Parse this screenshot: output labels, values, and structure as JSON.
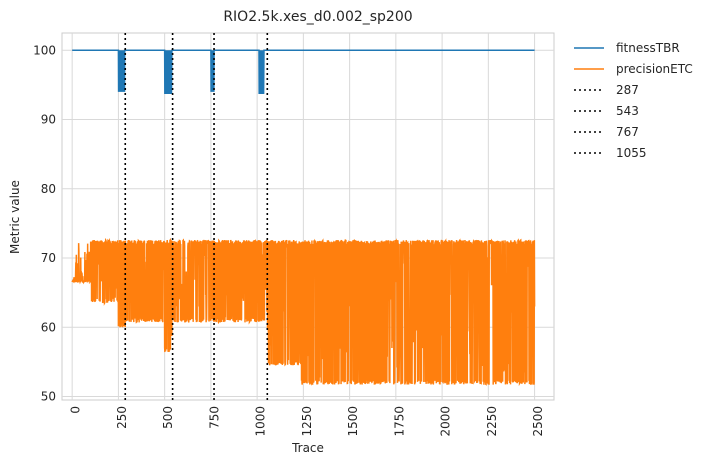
{
  "chart_data": {
    "type": "line",
    "title": "RIO2.5k.xes_d0.002_sp200",
    "xlabel": "Trace",
    "ylabel": "Metric value",
    "xlim": [
      -55,
      2605
    ],
    "ylim": [
      49.5,
      102.5
    ],
    "xticks": [
      0,
      250,
      500,
      750,
      1000,
      1250,
      1500,
      1750,
      2000,
      2250,
      2500
    ],
    "yticks": [
      50,
      60,
      70,
      80,
      90,
      100
    ],
    "grid": true,
    "legend_position": "outside-right",
    "colors": {
      "fitness": "#1f77b4",
      "precision": "#ff7f0e",
      "drift": "#000000"
    },
    "series": [
      {
        "name": "fitnessTBR",
        "baseline": 100,
        "segments": [
          [
            0,
            100
          ],
          [
            250,
            100
          ],
          [
            251,
            94
          ],
          [
            253,
            100
          ],
          [
            255,
            94
          ],
          [
            257,
            100
          ],
          [
            259,
            94
          ],
          [
            261,
            100
          ],
          [
            263,
            94
          ],
          [
            265,
            100
          ],
          [
            267,
            94
          ],
          [
            269,
            100
          ],
          [
            271,
            94
          ],
          [
            273,
            100
          ],
          [
            275,
            94
          ],
          [
            277,
            100
          ],
          [
            279,
            94
          ],
          [
            281,
            100
          ],
          [
            283,
            94
          ],
          [
            284,
            100
          ],
          [
            500,
            100
          ],
          [
            501,
            93.7
          ],
          [
            503,
            100
          ],
          [
            505,
            93.7
          ],
          [
            507,
            100
          ],
          [
            509,
            93.7
          ],
          [
            511,
            100
          ],
          [
            513,
            93.7
          ],
          [
            515,
            100
          ],
          [
            517,
            93.7
          ],
          [
            519,
            100
          ],
          [
            521,
            93.7
          ],
          [
            523,
            100
          ],
          [
            525,
            93.7
          ],
          [
            527,
            100
          ],
          [
            529,
            93.7
          ],
          [
            531,
            100
          ],
          [
            533,
            93.7
          ],
          [
            535,
            100
          ],
          [
            537,
            93.7
          ],
          [
            539,
            100
          ],
          [
            750,
            100
          ],
          [
            751,
            94
          ],
          [
            753,
            100
          ],
          [
            755,
            94
          ],
          [
            757,
            100
          ],
          [
            759,
            94
          ],
          [
            761,
            100
          ],
          [
            763,
            94
          ],
          [
            765,
            100
          ],
          [
            766,
            94
          ],
          [
            767,
            100
          ],
          [
            1010,
            100
          ],
          [
            1011,
            93.7
          ],
          [
            1013,
            100
          ],
          [
            1015,
            93.7
          ],
          [
            1017,
            100
          ],
          [
            1019,
            93.7
          ],
          [
            1021,
            100
          ],
          [
            1023,
            93.7
          ],
          [
            1025,
            100
          ],
          [
            1027,
            93.7
          ],
          [
            1029,
            100
          ],
          [
            1031,
            93.7
          ],
          [
            1033,
            100
          ],
          [
            1035,
            93.7
          ],
          [
            1037,
            100
          ],
          [
            2500,
            100
          ]
        ]
      },
      {
        "name": "precisionETC",
        "regimes": [
          {
            "x": [
              0,
              100
            ],
            "low": 66.5,
            "high": 72.6
          },
          {
            "x": [
              100,
              250
            ],
            "low": 63.5,
            "high": 72.6
          },
          {
            "x": [
              250,
              287
            ],
            "low": 60,
            "high": 72.6
          },
          {
            "x": [
              287,
              500
            ],
            "low": 60.7,
            "high": 72.6
          },
          {
            "x": [
              500,
              543
            ],
            "low": 56.3,
            "high": 72.6
          },
          {
            "x": [
              543,
              767
            ],
            "low": 60.7,
            "high": 72.6
          },
          {
            "x": [
              767,
              1055
            ],
            "low": 60.7,
            "high": 72.6
          },
          {
            "x": [
              1055,
              1240
            ],
            "low": 54.5,
            "high": 72.6
          },
          {
            "x": [
              1240,
              1750
            ],
            "low": 51.7,
            "high": 72.6
          },
          {
            "x": [
              1750,
              2500
            ],
            "low": 51.7,
            "high": 72.6
          }
        ]
      }
    ],
    "drift_lines": [
      {
        "name": "287",
        "x": 287
      },
      {
        "name": "543",
        "x": 543
      },
      {
        "name": "767",
        "x": 767
      },
      {
        "name": "1055",
        "x": 1055
      }
    ]
  }
}
